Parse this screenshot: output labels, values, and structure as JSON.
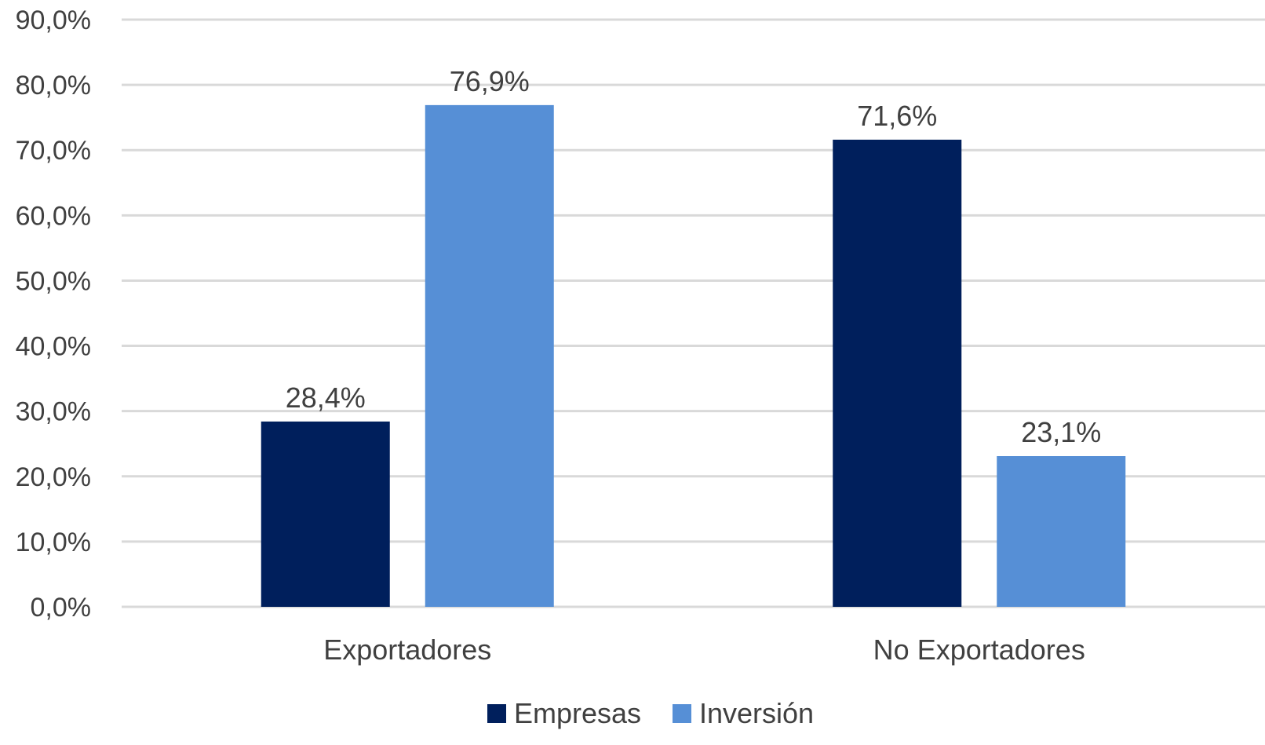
{
  "chart_data": {
    "type": "bar",
    "title": "",
    "xlabel": "",
    "ylabel": "",
    "categories": [
      "Exportadores",
      "No Exportadores"
    ],
    "series": [
      {
        "name": "Empresas",
        "values": [
          28.4,
          71.6
        ],
        "labels": [
          "28,4%",
          "71,6%"
        ],
        "color": "#001f5c"
      },
      {
        "name": "Inversión",
        "values": [
          76.9,
          23.1
        ],
        "labels": [
          "76,9%",
          "23,1%"
        ],
        "color": "#568fd6"
      }
    ],
    "ylim": [
      0,
      90
    ],
    "yticks": [
      0,
      10,
      20,
      30,
      40,
      50,
      60,
      70,
      80,
      90
    ],
    "ytick_labels": [
      "0,0%",
      "10,0%",
      "20,0%",
      "30,0%",
      "40,0%",
      "50,0%",
      "60,0%",
      "70,0%",
      "80,0%",
      "90,0%"
    ],
    "grid": true,
    "legend_position": "bottom-center",
    "colors": {
      "gridline": "#d9d9d9",
      "text": "#404040"
    }
  }
}
